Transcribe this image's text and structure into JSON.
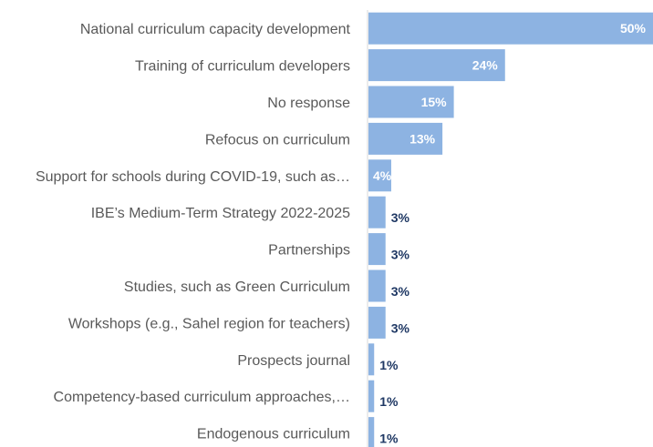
{
  "chart_data": {
    "type": "bar",
    "orientation": "horizontal",
    "categories": [
      "National curriculum capacity development",
      "Training of curriculum developers",
      "No response",
      "Refocus on curriculum",
      "Support for schools during COVID-19, such as…",
      "IBE’s Medium-Term Strategy 2022-2025",
      "Partnerships",
      "Studies, such as Green Curriculum",
      "Workshops (e.g., Sahel region for teachers)",
      "Prospects journal",
      "Competency-based curriculum approaches,…",
      "Endogenous curriculum"
    ],
    "values": [
      50,
      24,
      15,
      13,
      4,
      3,
      3,
      3,
      3,
      1,
      1,
      1
    ],
    "data_labels": [
      "50%",
      "24%",
      "15%",
      "13%",
      "4%",
      "3%",
      "3%",
      "3%",
      "3%",
      "1%",
      "1%",
      "1%"
    ],
    "xlim": [
      0,
      50
    ],
    "bar_color": "#8db3e2",
    "label_inside_color": "#ffffff",
    "label_outside_color": "#1f3864",
    "category_text_color": "#595959",
    "axis_line_color": "#d9d9d9",
    "grid": false,
    "legend": "none"
  }
}
